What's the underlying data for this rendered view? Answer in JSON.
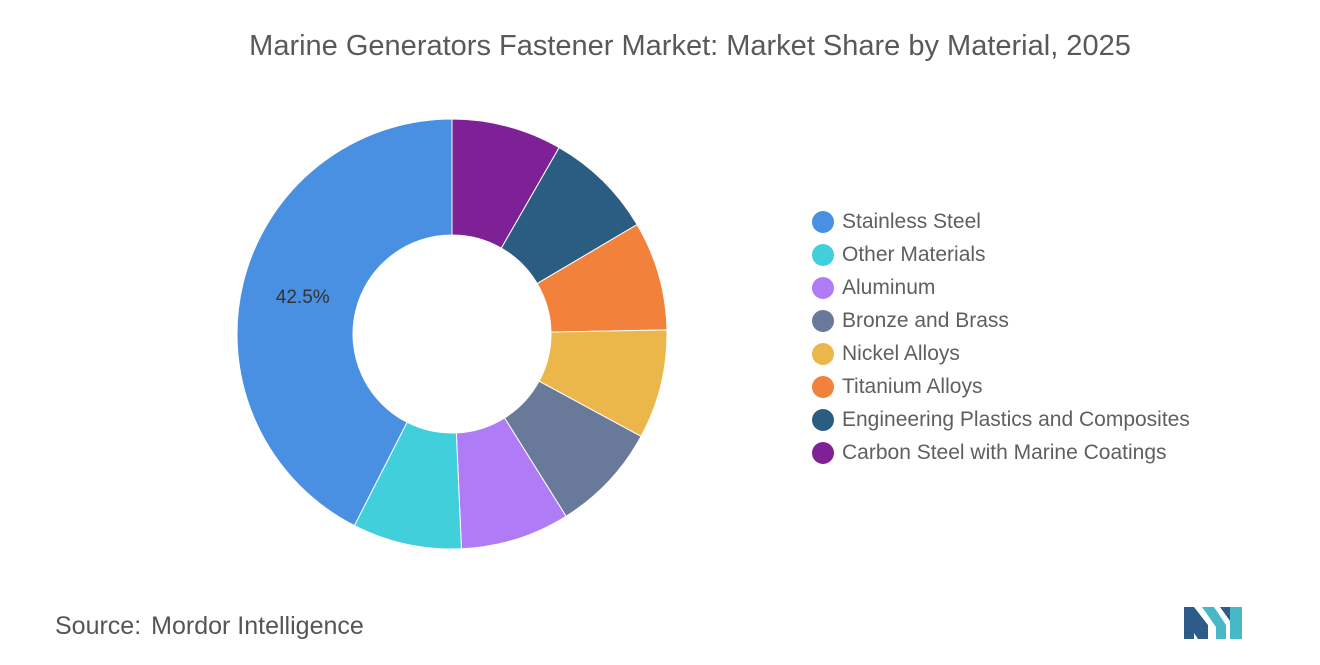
{
  "chart_data": {
    "type": "pie",
    "title": "Marine Generators Fastener Market: Market Share by Material, 2025",
    "categories": [
      "Stainless Steel",
      "Other Materials",
      "Aluminum",
      "Bronze and Brass",
      "Nickel Alloys",
      "Titanium Alloys",
      "Engineering Plastics and Composites",
      "Carbon Steel with Marine Coatings"
    ],
    "values": [
      42.5,
      8.2,
      8.2,
      8.2,
      8.2,
      8.2,
      8.2,
      8.3
    ],
    "data_labels": [
      "42.5%",
      "",
      "",
      "",
      "",
      "",
      "",
      ""
    ],
    "colors": [
      "#4a90e2",
      "#40cfdb",
      "#b07cf5",
      "#68799a",
      "#ebb64a",
      "#f2813b",
      "#2b5c82",
      "#7e2196"
    ],
    "donut": true,
    "legend_position": "right",
    "start": "top, counter-clockwise order for the first slice"
  },
  "footer": {
    "source_key": "Source:",
    "source_value": "Mordor Intelligence"
  },
  "logo": {
    "icon": "mordor-intelligence-logo",
    "colors": [
      "#2d5b8a",
      "#48b8c6"
    ]
  }
}
